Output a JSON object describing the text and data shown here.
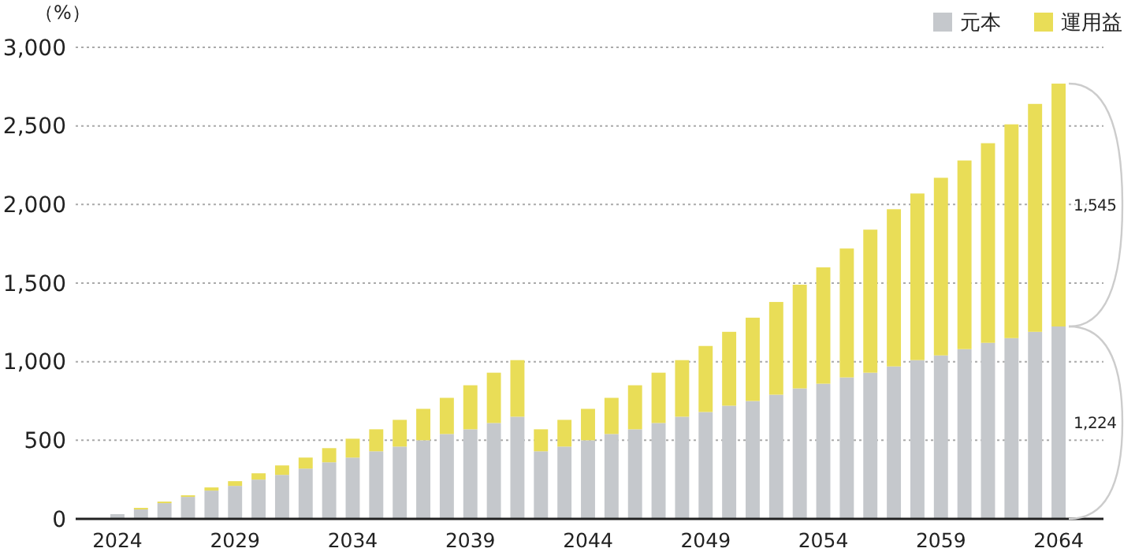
{
  "chart_data": {
    "type": "bar",
    "stacked": true,
    "ylabel": "（%）",
    "categories": [
      "2024",
      null,
      null,
      null,
      null,
      "2029",
      null,
      null,
      null,
      null,
      "2034",
      null,
      null,
      null,
      null,
      "2039",
      null,
      null,
      null,
      null,
      "2044",
      null,
      null,
      null,
      null,
      "2049",
      null,
      null,
      null,
      null,
      "2054",
      null,
      null,
      null,
      null,
      "2059",
      null,
      null,
      null,
      null,
      "2064"
    ],
    "series": [
      {
        "name": "元本",
        "color": "#c5c8cc",
        "values": [
          30,
          60,
          100,
          140,
          180,
          210,
          250,
          280,
          320,
          360,
          390,
          430,
          460,
          500,
          540,
          570,
          610,
          650,
          430,
          460,
          500,
          540,
          570,
          610,
          650,
          680,
          720,
          750,
          790,
          830,
          860,
          900,
          930,
          970,
          1010,
          1040,
          1080,
          1120,
          1150,
          1190,
          1224
        ]
      },
      {
        "name": "運用益",
        "color": "#e9dd57",
        "values": [
          0,
          10,
          10,
          10,
          20,
          30,
          40,
          60,
          70,
          90,
          120,
          140,
          170,
          200,
          230,
          280,
          320,
          360,
          140,
          170,
          200,
          230,
          280,
          320,
          360,
          420,
          470,
          530,
          590,
          660,
          740,
          820,
          910,
          1000,
          1060,
          1130,
          1200,
          1270,
          1360,
          1450,
          1545
        ]
      }
    ],
    "ylim": [
      0,
      3000
    ],
    "yticks": [
      0,
      500,
      {
        "value": 1000,
        "label": "1,000"
      },
      {
        "value": 1500,
        "label": "1,500"
      },
      {
        "value": 2000,
        "label": "2,000"
      },
      {
        "value": 2500,
        "label": "2,500"
      },
      {
        "value": 3000,
        "label": "3,000"
      }
    ],
    "grid": "y",
    "legend": "top right",
    "annotations": [
      {
        "text": "1,545",
        "x": "2064",
        "y": 1996
      },
      {
        "text": "1,224",
        "x": "2064",
        "y": 612
      }
    ]
  }
}
